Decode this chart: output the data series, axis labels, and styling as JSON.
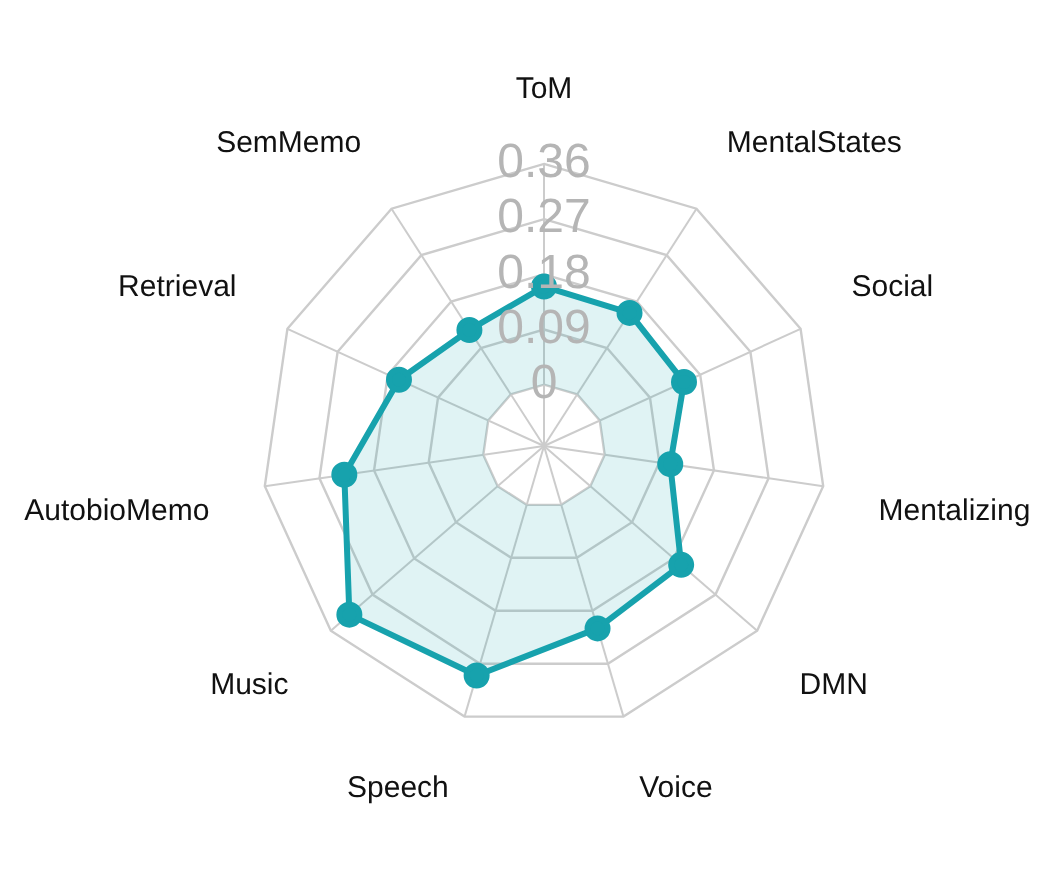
{
  "chart_data": {
    "type": "radar",
    "categories": [
      "ToM",
      "MentalStates",
      "Social",
      "Mentalizing",
      "DMN",
      "Voice",
      "Speech",
      "Music",
      "AutobioMemo",
      "Retrieval",
      "SemMemo"
    ],
    "series": [
      {
        "color": "#17a2ad",
        "values": [
          0.16,
          0.158,
          0.151,
          0.108,
          0.196,
          0.21,
          0.29,
          0.32,
          0.229,
          0.16,
          0.125
        ]
      }
    ],
    "ylim": [
      -0.1,
      0.36
    ],
    "yticks": [
      0,
      0.09,
      0.18,
      0.27,
      0.36
    ],
    "grid": true,
    "legend": false,
    "marker": "circle"
  }
}
